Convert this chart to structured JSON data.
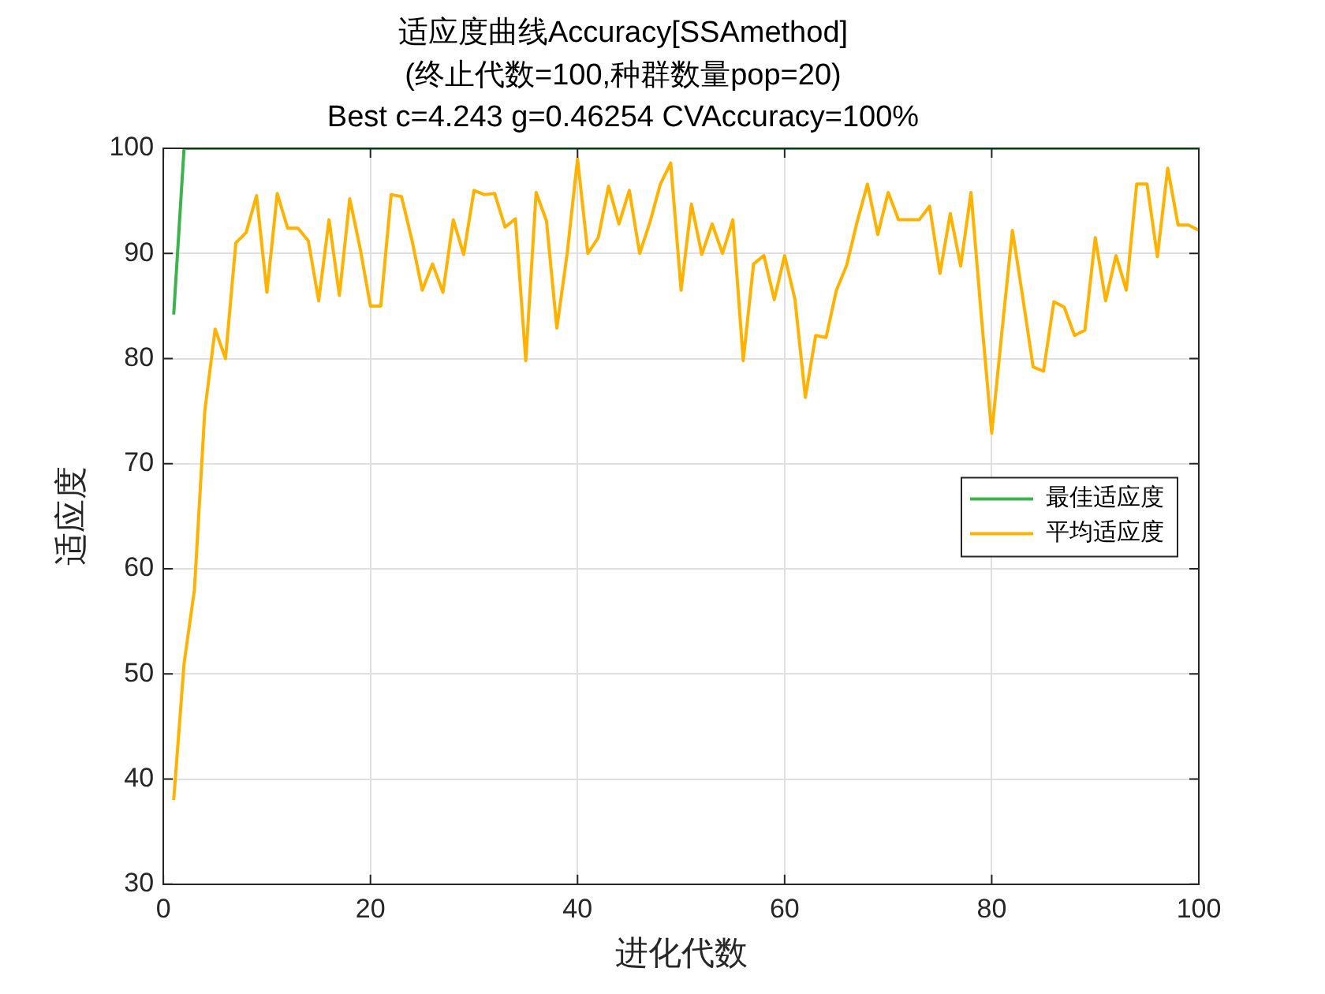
{
  "chart_data": {
    "type": "line",
    "title": "适应度曲线Accuracy[SSAmethod]",
    "subtitle": "(终止代数=100,种群数量pop=20)",
    "annotations": [
      "Best c=4.243 g=0.46254 CVAccuracy=100%"
    ],
    "xlabel": "进化代数",
    "ylabel": "适应度",
    "x": [
      1,
      2,
      3,
      4,
      5,
      6,
      7,
      8,
      9,
      10,
      11,
      12,
      13,
      14,
      15,
      16,
      17,
      18,
      19,
      20,
      21,
      22,
      23,
      24,
      25,
      26,
      27,
      28,
      29,
      30,
      31,
      32,
      33,
      34,
      35,
      36,
      37,
      38,
      39,
      40,
      41,
      42,
      43,
      44,
      45,
      46,
      47,
      48,
      49,
      50,
      51,
      52,
      53,
      54,
      55,
      56,
      57,
      58,
      59,
      60,
      61,
      62,
      63,
      64,
      65,
      66,
      67,
      68,
      69,
      70,
      71,
      72,
      73,
      74,
      75,
      76,
      77,
      78,
      79,
      80,
      81,
      82,
      83,
      84,
      85,
      86,
      87,
      88,
      89,
      90,
      91,
      92,
      93,
      94,
      95,
      96,
      97,
      98,
      99,
      100
    ],
    "series": [
      {
        "name": "最佳适应度",
        "color": "#3cb44b",
        "values": [
          84.2,
          100,
          100,
          100,
          100,
          100,
          100,
          100,
          100,
          100,
          100,
          100,
          100,
          100,
          100,
          100,
          100,
          100,
          100,
          100,
          100,
          100,
          100,
          100,
          100,
          100,
          100,
          100,
          100,
          100,
          100,
          100,
          100,
          100,
          100,
          100,
          100,
          100,
          100,
          100,
          100,
          100,
          100,
          100,
          100,
          100,
          100,
          100,
          100,
          100,
          100,
          100,
          100,
          100,
          100,
          100,
          100,
          100,
          100,
          100,
          100,
          100,
          100,
          100,
          100,
          100,
          100,
          100,
          100,
          100,
          100,
          100,
          100,
          100,
          100,
          100,
          100,
          100,
          100,
          100,
          100,
          100,
          100,
          100,
          100,
          100,
          100,
          100,
          100,
          100,
          100,
          100,
          100,
          100,
          100,
          100,
          100,
          100,
          100,
          100
        ]
      },
      {
        "name": "平均适应度",
        "color": "#ffb300",
        "values": [
          38,
          51,
          58,
          75,
          82.8,
          80,
          91,
          92,
          95.5,
          86.3,
          95.7,
          92.4,
          92.4,
          91.2,
          85.5,
          93.2,
          86,
          95.2,
          90.5,
          85,
          85,
          95.6,
          95.4,
          91.3,
          86.5,
          89,
          86.3,
          93.2,
          89.9,
          96,
          95.6,
          95.7,
          92.5,
          93.3,
          79.8,
          95.8,
          93.1,
          82.9,
          90,
          99,
          90,
          91.5,
          96.4,
          92.8,
          96,
          90,
          93,
          96.6,
          98.6,
          86.5,
          94.7,
          89.9,
          92.8,
          90,
          93.2,
          79.8,
          89,
          89.8,
          85.6,
          89.8,
          85.6,
          76.3,
          82.2,
          82,
          86.5,
          88.9,
          93,
          96.6,
          91.8,
          95.8,
          93.2,
          93.2,
          93.2,
          94.5,
          88.1,
          93.8,
          88.8,
          95.8,
          84,
          72.9,
          82.7,
          92.2,
          85.8,
          79.2,
          78.8,
          85.4,
          84.9,
          82.2,
          82.7,
          91.5,
          85.5,
          89.8,
          86.5,
          96.6,
          96.6,
          89.7,
          98.1,
          92.7,
          92.7,
          92.2
        ]
      }
    ],
    "xlim": [
      0,
      100
    ],
    "xticks": [
      0,
      20,
      40,
      60,
      80,
      100
    ],
    "ylim": [
      30,
      100
    ],
    "yticks": [
      30,
      40,
      50,
      60,
      70,
      80,
      90,
      100
    ],
    "grid": true,
    "legend": "right",
    "marker": "none",
    "line_style": "solid"
  }
}
